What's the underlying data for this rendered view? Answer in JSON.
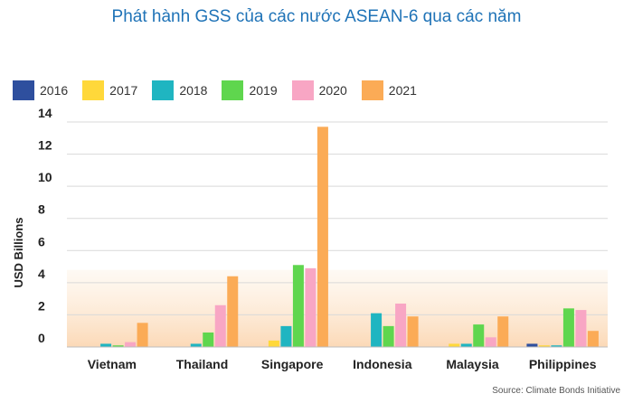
{
  "chart_data": {
    "type": "bar",
    "title": "Phát hành GSS của các nước ASEAN-6 qua các năm",
    "ylabel": "USD Billions",
    "xlabel": "",
    "ylim": [
      0,
      14
    ],
    "yticks": [
      "14",
      "12",
      "10",
      "8",
      "6",
      "4",
      "2",
      "0"
    ],
    "ytick_values": [
      14,
      12,
      10,
      8,
      6,
      4,
      2,
      0
    ],
    "categories": [
      "Vietnam",
      "Thailand",
      "Singapore",
      "Indonesia",
      "Malaysia",
      "Philippines"
    ],
    "series": [
      {
        "name": "2016",
        "color": "#2e4f9e",
        "values": [
          0,
          0,
          0,
          0,
          0,
          0.2
        ]
      },
      {
        "name": "2017",
        "color": "#ffd83a",
        "values": [
          0,
          0,
          0.4,
          0,
          0.2,
          0.1
        ]
      },
      {
        "name": "2018",
        "color": "#1fb5c1",
        "values": [
          0.2,
          0.2,
          1.3,
          2.1,
          0.2,
          0.1
        ]
      },
      {
        "name": "2019",
        "color": "#5fd64e",
        "values": [
          0.1,
          0.9,
          5.1,
          1.3,
          1.4,
          2.4
        ]
      },
      {
        "name": "2020",
        "color": "#f8a6c4",
        "values": [
          0.3,
          2.6,
          4.9,
          2.7,
          0.6,
          2.3
        ]
      },
      {
        "name": "2021",
        "color": "#fbab56",
        "values": [
          1.5,
          4.4,
          13.7,
          1.9,
          1.9,
          1.0
        ]
      }
    ],
    "grid": true,
    "legend_position": "top-left"
  },
  "source": "Source: Climate Bonds Initiative"
}
